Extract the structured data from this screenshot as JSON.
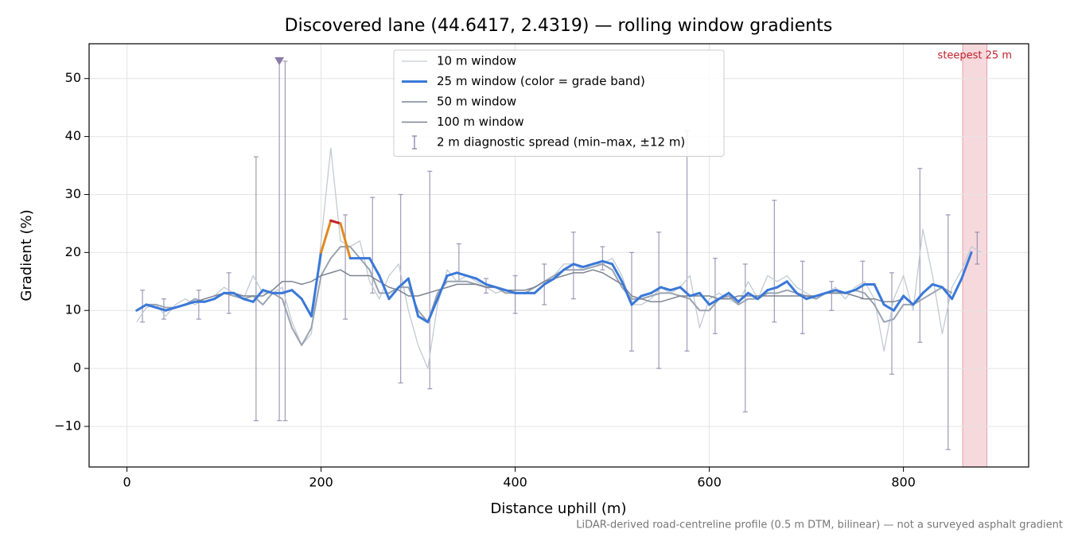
{
  "chart_data": {
    "type": "line",
    "title": "Discovered lane (44.6417, 2.4319) — rolling window gradients",
    "x_label": "Distance uphill (m)",
    "y_label": "Gradient (%)",
    "footnote": "LiDAR-derived road-centreline profile (0.5 m DTM, bilinear) — not a surveyed asphalt gradient",
    "xlim": [
      -39,
      929
    ],
    "ylim": [
      -17,
      56
    ],
    "xticks": [
      0,
      200,
      400,
      600,
      800
    ],
    "yticks": [
      {
        "value": -10,
        "label": "−10"
      },
      0,
      10,
      20,
      30,
      40,
      50
    ],
    "grid": true,
    "x": [
      10,
      20,
      30,
      40,
      50,
      60,
      70,
      80,
      90,
      100,
      110,
      120,
      130,
      140,
      150,
      160,
      170,
      180,
      190,
      200,
      210,
      220,
      230,
      240,
      250,
      260,
      270,
      280,
      290,
      300,
      310,
      320,
      330,
      340,
      350,
      360,
      370,
      380,
      390,
      400,
      410,
      420,
      430,
      440,
      450,
      460,
      470,
      480,
      490,
      500,
      510,
      520,
      530,
      540,
      550,
      560,
      570,
      580,
      590,
      600,
      610,
      620,
      630,
      640,
      650,
      660,
      670,
      680,
      690,
      700,
      710,
      720,
      730,
      740,
      750,
      760,
      770,
      780,
      790,
      800,
      810,
      820,
      830,
      840,
      850,
      860,
      870,
      880
    ],
    "series": [
      {
        "name": "10 m window",
        "color": "#c3cad3",
        "width": 1.3,
        "values": [
          8,
          10.5,
          11,
          9,
          11,
          12,
          11,
          12,
          12.5,
          14,
          13,
          12,
          16,
          13,
          13,
          14,
          8,
          4,
          6,
          22,
          38,
          22,
          21,
          22,
          15,
          12,
          16,
          18,
          10,
          4,
          0,
          11,
          17,
          15,
          16,
          15,
          14,
          13,
          13.5,
          13,
          13,
          14,
          15,
          16,
          18,
          18,
          17,
          18,
          18,
          19,
          16,
          11,
          11,
          12,
          14,
          13,
          14,
          16,
          7,
          12,
          13,
          12,
          11,
          15,
          12,
          16,
          15,
          16,
          14,
          13,
          12,
          13,
          14,
          12,
          14,
          15,
          12,
          3,
          12,
          16,
          10,
          24,
          16,
          6,
          14,
          17,
          21,
          20
        ]
      },
      {
        "name": "25 m window (color = grade band)",
        "color": "#3a78d8",
        "width": 3,
        "grade_bands": [
          {
            "from": 20,
            "color": "#e08a1e"
          },
          {
            "from": 25,
            "color": "#c0202a"
          }
        ],
        "values": [
          10,
          11,
          10.5,
          10,
          10.5,
          11,
          11.5,
          11.5,
          12,
          13,
          13,
          12,
          11.5,
          13.5,
          13,
          13,
          13.5,
          12,
          9,
          20,
          25.5,
          25,
          19,
          19,
          19,
          16,
          12,
          14,
          15.5,
          9,
          8,
          12,
          16,
          16.5,
          16,
          15.5,
          14.5,
          14,
          13.5,
          13,
          13,
          13,
          14.5,
          15.5,
          17,
          18,
          17.5,
          18,
          18.5,
          18,
          15,
          11,
          12.5,
          13,
          14,
          13.5,
          14,
          12.5,
          13,
          11,
          12,
          13,
          11.5,
          13,
          12,
          13.5,
          14,
          15,
          13,
          12,
          12.5,
          13,
          13.5,
          13,
          13.5,
          14.5,
          14.5,
          11,
          10,
          12.5,
          11,
          13,
          14.5,
          14,
          12,
          15.5,
          20,
          null
        ]
      },
      {
        "name": "50 m window",
        "color": "#9aa3b0",
        "width": 2,
        "values": [
          null,
          11,
          11,
          10.5,
          10.5,
          11,
          12,
          11.5,
          12,
          13,
          12.5,
          12,
          12.5,
          11,
          13,
          12,
          7,
          4,
          7,
          16,
          19,
          21,
          21,
          19,
          17,
          13,
          13,
          14,
          14,
          10,
          8,
          13,
          15,
          15,
          15,
          14.5,
          14,
          14,
          13,
          13,
          13,
          14,
          15,
          16,
          17,
          17,
          17,
          17.5,
          18,
          17,
          14,
          12,
          12,
          12.5,
          13,
          13,
          12.5,
          12,
          10,
          10,
          12,
          12.5,
          11,
          12,
          12,
          13,
          13,
          13.5,
          13,
          12.5,
          12,
          13,
          13,
          13,
          13.5,
          13,
          11,
          8,
          8.5,
          11,
          11,
          12,
          13,
          14,
          13,
          null,
          null,
          null
        ]
      },
      {
        "name": "100 m window",
        "color": "#7d8491",
        "width": 1.5,
        "values": [
          null,
          null,
          null,
          10,
          10.5,
          11,
          11.5,
          12,
          12.5,
          13,
          13,
          12.5,
          12.5,
          12.5,
          13.5,
          15,
          15,
          14.5,
          15,
          16,
          16.5,
          17,
          16,
          16,
          16,
          15,
          14,
          13.5,
          12.5,
          12.5,
          13,
          13.5,
          14,
          14.5,
          14.5,
          14.5,
          14,
          14,
          13.5,
          13.5,
          13.5,
          14,
          15,
          15.5,
          16,
          16.5,
          16.5,
          17,
          16.5,
          15.5,
          14.5,
          12.5,
          12,
          11.5,
          11.5,
          12,
          12.5,
          12.5,
          12.5,
          12.5,
          12,
          12,
          12.5,
          12.5,
          12.5,
          12.5,
          12.5,
          12.5,
          12.5,
          12.5,
          12.5,
          13,
          13,
          13,
          12.5,
          12,
          12,
          11.5,
          11.5,
          12,
          null,
          null,
          null,
          null,
          null,
          null,
          null,
          null
        ]
      }
    ],
    "error_bars": {
      "name": "2 m diagnostic spread (min–max, ±12 m)",
      "color": "#8a82a8",
      "x": [
        16,
        38,
        74,
        105,
        133,
        157,
        163,
        225,
        253,
        282,
        312,
        342,
        370,
        400,
        430,
        460,
        490,
        520,
        548,
        577,
        606,
        637,
        667,
        696,
        726,
        758,
        788,
        817,
        846,
        876
      ],
      "low": [
        8,
        8.5,
        8.5,
        9.5,
        -9,
        -9,
        -9,
        8.5,
        13,
        -2.5,
        -3.5,
        15,
        13,
        9.5,
        11,
        12,
        17,
        3,
        0,
        3,
        6,
        -7.5,
        8,
        6,
        10,
        12,
        -1,
        4.5,
        -14,
        18
      ],
      "high": [
        13.5,
        12,
        13.5,
        16.5,
        36.5,
        53,
        53,
        26.5,
        29.5,
        30,
        34,
        21.5,
        15.5,
        16,
        18,
        23.5,
        21,
        20,
        23.5,
        41,
        19,
        18,
        29,
        18.5,
        15,
        18.5,
        16.5,
        34.5,
        26.5,
        23.5
      ]
    },
    "clip_marker": {
      "x": 157,
      "y": 53,
      "color": "#8a7aa8"
    },
    "highlight": {
      "label": "steepest 25 m",
      "x": [
        861,
        886
      ],
      "color": "#e8a0aa",
      "label_color": "#c0202a"
    }
  }
}
